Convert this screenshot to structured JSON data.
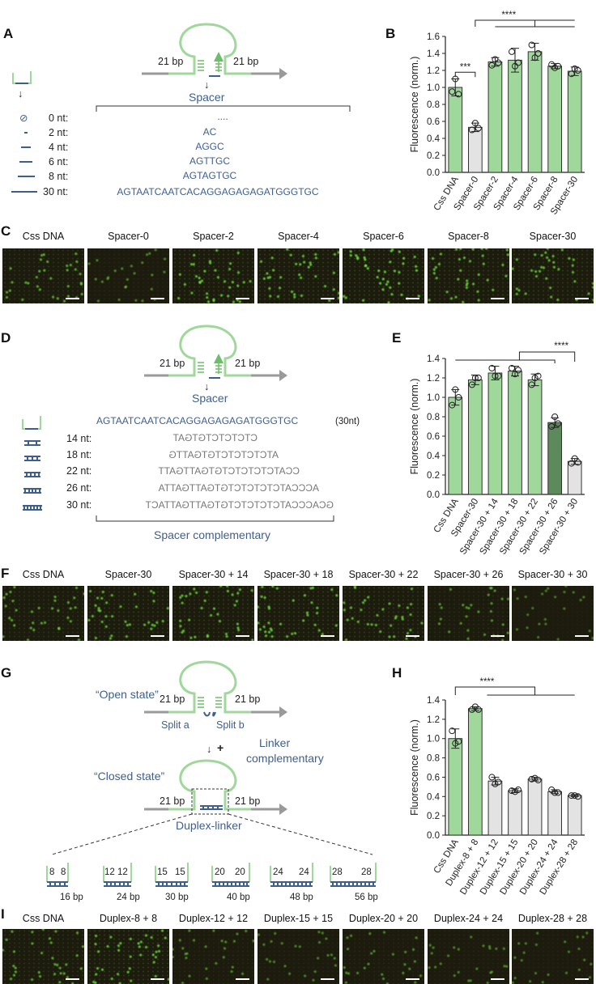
{
  "panels": {
    "A": "A",
    "B": "B",
    "C": "C",
    "D": "D",
    "E": "E",
    "F": "F",
    "G": "G",
    "H": "H",
    "I": "I"
  },
  "colors": {
    "green": "#9fd89a",
    "green_stroke": "#6ebd68",
    "gray": "#e3e3e3",
    "dark_green": "#5d8a5a",
    "blue": "#3d5f8f",
    "backbone": "#9a9a9a"
  },
  "panelA": {
    "bp_left": "21 bp",
    "bp_right": "21 bp",
    "spacer_label": "Spacer",
    "rows": [
      {
        "len": "0 nt:",
        "seq": "....",
        "icon": "empty-set-icon"
      },
      {
        "len": "2 nt:",
        "seq": "AC"
      },
      {
        "len": "4 nt:",
        "seq": "AGGC"
      },
      {
        "len": "6 nt:",
        "seq": "AGTTGC"
      },
      {
        "len": "8 nt:",
        "seq": "AGTAGTGC"
      },
      {
        "len": "30 nt:",
        "seq": "AGTAATCAATCACAGGAGAGAGATGGGTGC"
      }
    ]
  },
  "panelD": {
    "bp_left": "21 bp",
    "bp_right": "21 bp",
    "spacer_label": "Spacer",
    "spacer_seq": "AGTAATCAATCACAGGAGAGAGATGGGTGC",
    "spacer_len": "(30nt)",
    "rows": [
      {
        "len": "14 nt:",
        "seq": "CTCTCTCTGTGAT"
      },
      {
        "len": "18 nt:",
        "seq": "ATCTCTCTCTGTGATTG"
      },
      {
        "len": "22 nt:",
        "seq": "CCATCTCTCTCTGTGATTGATT"
      },
      {
        "len": "26 nt:",
        "seq": "ACCCATCTCTCTCTGTGATTGATTA"
      },
      {
        "len": "30 nt:",
        "seq": "GCACCCATCTCTCTCTGTGATTGATTACT"
      }
    ],
    "complementary_label": "Spacer complementary"
  },
  "panelG": {
    "open_state": "“Open state”",
    "closed_state": "“Closed state”",
    "bp_left": "21 bp",
    "bp_right": "21 bp",
    "split_a": "Split a",
    "split_b": "Split b",
    "plus": "+",
    "linker_line1": "Linker",
    "linker_line2": "complementary",
    "duplex_linker": "Duplex-linker",
    "duplexes": [
      {
        "a": "8",
        "b": "8",
        "total": "16 bp"
      },
      {
        "a": "12",
        "b": "12",
        "total": "24 bp"
      },
      {
        "a": "15",
        "b": "15",
        "total": "30 bp"
      },
      {
        "a": "20",
        "b": "20",
        "total": "40 bp"
      },
      {
        "a": "24",
        "b": "24",
        "total": "48 bp"
      },
      {
        "a": "28",
        "b": "28",
        "total": "56 bp"
      }
    ]
  },
  "micrographs": {
    "C": [
      "Css DNA",
      "Spacer-0",
      "Spacer-2",
      "Spacer-4",
      "Spacer-6",
      "Spacer-8",
      "Spacer-30"
    ],
    "F": [
      "Css DNA",
      "Spacer-30",
      "Spacer-30 + 14",
      "Spacer-30 + 18",
      "Spacer-30 + 22",
      "Spacer-30 + 26",
      "Spacer-30 + 30"
    ],
    "I": [
      "Css DNA",
      "Duplex-8 + 8",
      "Duplex-12 + 12",
      "Duplex-15 + 15",
      "Duplex-20 + 20",
      "Duplex-24 + 24",
      "Duplex-28 + 28"
    ],
    "brightness": {
      "C": [
        1.0,
        0.5,
        1.3,
        1.3,
        1.4,
        1.25,
        1.2
      ],
      "F": [
        1.0,
        1.2,
        1.25,
        1.28,
        1.2,
        0.75,
        0.35
      ],
      "I": [
        1.0,
        1.3,
        0.55,
        0.45,
        0.58,
        0.45,
        0.4
      ]
    }
  },
  "chart_data": [
    {
      "panel": "B",
      "type": "bar",
      "ylabel": "Fluorescence (norm.)",
      "ylim": [
        0,
        1.6
      ],
      "yticks": [
        "0.0",
        "0.2",
        "0.4",
        "0.6",
        "0.8",
        "1.0",
        "1.2",
        "1.4",
        "1.6"
      ],
      "categories": [
        "Css DNA",
        "Spacer-0",
        "Spacer-2",
        "Spacer-4",
        "Spacer-6",
        "Spacer-8",
        "Spacer-30"
      ],
      "values": [
        1.0,
        0.53,
        1.3,
        1.32,
        1.42,
        1.25,
        1.19
      ],
      "errors": [
        0.1,
        0.05,
        0.05,
        0.14,
        0.1,
        0.03,
        0.05
      ],
      "points": [
        [
          0.95,
          1.1,
          0.92
        ],
        [
          0.5,
          0.58,
          0.52
        ],
        [
          1.26,
          1.33,
          1.29
        ],
        [
          1.42,
          1.25,
          1.29
        ],
        [
          1.5,
          1.35,
          1.4
        ],
        [
          1.27,
          1.23,
          1.25
        ],
        [
          1.16,
          1.22,
          1.2
        ]
      ],
      "bar_colors": [
        "green",
        "gray",
        "green",
        "green",
        "green",
        "green",
        "green"
      ],
      "significance": [
        "***",
        "****"
      ]
    },
    {
      "panel": "E",
      "type": "bar",
      "ylabel": "Fluorescence (norm.)",
      "ylim": [
        0,
        1.4
      ],
      "yticks": [
        "0.0",
        "0.2",
        "0.4",
        "0.6",
        "0.8",
        "1.0",
        "1.2",
        "1.4"
      ],
      "categories": [
        "Css DNA",
        "Spacer-30",
        "Spacer-30 + 14",
        "Spacer-30 + 18",
        "Spacer-30 + 22",
        "Spacer-30 + 26",
        "Spacer-30 + 30"
      ],
      "values": [
        1.0,
        1.18,
        1.25,
        1.27,
        1.18,
        0.74,
        0.34
      ],
      "errors": [
        0.08,
        0.05,
        0.07,
        0.05,
        0.06,
        0.05,
        0.03
      ],
      "points": [
        [
          0.92,
          1.08,
          1.0
        ],
        [
          1.13,
          1.2,
          1.2
        ],
        [
          1.3,
          1.22,
          1.22
        ],
        [
          1.3,
          1.24,
          1.28
        ],
        [
          1.13,
          1.2,
          1.22
        ],
        [
          0.7,
          0.8,
          0.73
        ],
        [
          0.32,
          0.37,
          0.33
        ]
      ],
      "bar_colors": [
        "green",
        "green",
        "green",
        "green",
        "green",
        "dark_green",
        "gray"
      ],
      "significance": [
        "****"
      ]
    },
    {
      "panel": "H",
      "type": "bar",
      "ylabel": "Fluorescence (norm.)",
      "ylim": [
        0,
        1.4
      ],
      "yticks": [
        "0.0",
        "0.2",
        "0.4",
        "0.6",
        "0.8",
        "1.0",
        "1.2",
        "1.4"
      ],
      "categories": [
        "Css DNA",
        "Duplex-8 + 8",
        "Duplex-12 + 12",
        "Duplex-15 + 15",
        "Duplex-20 + 20",
        "Duplex-24 + 24",
        "Duplex-28 + 28"
      ],
      "values": [
        1.0,
        1.31,
        0.56,
        0.46,
        0.58,
        0.45,
        0.41
      ],
      "errors": [
        0.1,
        0.02,
        0.04,
        0.02,
        0.02,
        0.02,
        0.01
      ],
      "points": [
        [
          1.08,
          0.95,
          0.97
        ],
        [
          1.3,
          1.33,
          1.3
        ],
        [
          0.6,
          0.53,
          0.55
        ],
        [
          0.46,
          0.45,
          0.47
        ],
        [
          0.58,
          0.59,
          0.57
        ],
        [
          0.47,
          0.44,
          0.44
        ],
        [
          0.41,
          0.41,
          0.4
        ]
      ],
      "bar_colors": [
        "green",
        "green",
        "gray",
        "gray",
        "gray",
        "gray",
        "gray"
      ],
      "significance": [
        "****"
      ]
    }
  ]
}
